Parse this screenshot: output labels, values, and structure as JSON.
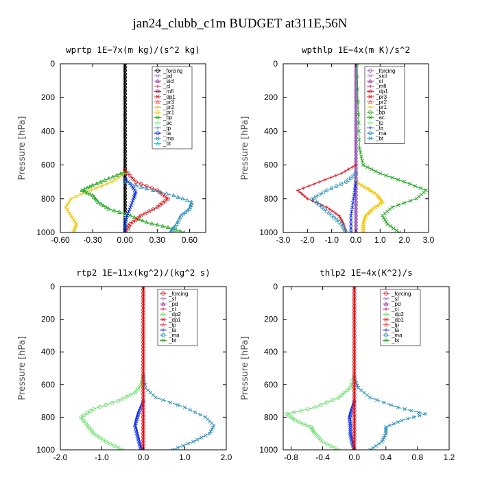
{
  "figure": {
    "title": "jan24_clubb_c1m  BUDGET at311E,56N"
  },
  "chart_data": [
    {
      "type": "line",
      "title": "wprtp   1E−7x(m kg)/(s^2 kg)",
      "ylabel": "Pressure [hPa]",
      "xlim": [
        -0.6,
        0.75
      ],
      "ylim": [
        1000,
        0
      ],
      "xticks": [
        -0.6,
        -0.3,
        0.0,
        0.3,
        0.6
      ],
      "xtick_labels": [
        "-0.60",
        "-0.30",
        "0.00",
        "0.30",
        "0.60"
      ],
      "yticks": [
        0,
        200,
        400,
        600,
        800,
        1000
      ],
      "ytick_labels": [
        "0",
        "200",
        "400",
        "600",
        "800",
        "1000"
      ],
      "legend_position": "top-right",
      "legend": [
        "_forcing",
        "_pd",
        "_sicl",
        "_cl",
        "_mfl",
        "_dp1",
        "_pr3",
        "_pr2",
        "_pr1",
        "_bp",
        "_ac",
        "_tp",
        "_ta",
        "_ma",
        "_bt"
      ],
      "series": [
        {
          "name": "_forcing",
          "color": "#000000",
          "p": [
            0,
            1000
          ],
          "v": [
            0.0,
            0.0
          ]
        },
        {
          "name": "_pr1",
          "color": "#f2c500",
          "p": [
            650,
            700,
            750,
            800,
            850,
            900,
            950,
            1000
          ],
          "v": [
            0.0,
            -0.12,
            -0.32,
            -0.5,
            -0.55,
            -0.5,
            -0.45,
            -0.48
          ]
        },
        {
          "name": "_bp",
          "color": "#22aa22",
          "p": [
            640,
            680,
            720,
            750,
            780,
            820,
            860,
            900,
            940,
            970,
            1000
          ],
          "v": [
            0.0,
            -0.15,
            -0.3,
            -0.4,
            -0.3,
            -0.25,
            -0.15,
            0.05,
            0.2,
            0.4,
            0.55
          ]
        },
        {
          "name": "_ac",
          "color": "#9ae89a",
          "p": [
            900,
            950,
            1000
          ],
          "v": [
            0.0,
            0.02,
            0.05
          ]
        },
        {
          "name": "_dp1",
          "color": "#e0151b",
          "p": [
            630,
            700,
            750,
            800,
            850,
            900,
            950,
            1000
          ],
          "v": [
            0.0,
            0.1,
            0.3,
            0.4,
            0.3,
            0.15,
            0.05,
            0.0
          ]
        },
        {
          "name": "_ta",
          "color": "#1030e0",
          "p": [
            680,
            720,
            760,
            800,
            850,
            900,
            950,
            1000
          ],
          "v": [
            0.0,
            0.06,
            0.1,
            0.08,
            0.05,
            0.02,
            0.0,
            0.0
          ]
        },
        {
          "name": "_ma",
          "color": "#2a8fb8",
          "p": [
            700,
            740,
            780,
            820,
            860,
            900,
            950,
            1000
          ],
          "v": [
            0.0,
            0.2,
            0.45,
            0.62,
            0.6,
            0.52,
            0.48,
            0.42
          ]
        }
      ]
    },
    {
      "type": "line",
      "title": "wpthlp   1E−4x(m K)/s^2",
      "ylabel": "Pressure [hPa]",
      "xlim": [
        -3.0,
        3.0
      ],
      "ylim": [
        1000,
        0
      ],
      "xticks": [
        -3,
        -2,
        -1,
        0,
        1,
        2,
        3
      ],
      "xtick_labels": [
        "-3.0",
        "-2.0",
        "-1.0",
        "0.0",
        "1.0",
        "2.0",
        "3.0"
      ],
      "yticks": [
        0,
        200,
        400,
        600,
        800,
        1000
      ],
      "ytick_labels": [
        "0",
        "200",
        "400",
        "600",
        "800",
        "1000"
      ],
      "legend_position": "top-right",
      "legend": [
        "_forcing",
        "_sicl",
        "_cl",
        "_mfl",
        "_dp1",
        "_pr3",
        "_pr2",
        "_pr1",
        "_bp",
        "_ac",
        "_tp",
        "_ta",
        "_ma",
        "_bt"
      ],
      "series": [
        {
          "name": "_forcing",
          "color": "#9b59b6",
          "p": [
            0,
            1000
          ],
          "v": [
            0.0,
            0.0
          ]
        },
        {
          "name": "_bp",
          "color": "#22aa22",
          "p": [
            0,
            300,
            500,
            600,
            650,
            700,
            750,
            800,
            850,
            900,
            950,
            1000
          ],
          "v": [
            0.05,
            0.1,
            0.15,
            0.3,
            1.0,
            2.0,
            2.9,
            2.5,
            1.5,
            1.1,
            1.3,
            1.8
          ]
        },
        {
          "name": "_pr1",
          "color": "#f2c500",
          "p": [
            700,
            740,
            780,
            820,
            860,
            900,
            950,
            1000
          ],
          "v": [
            0.0,
            0.5,
            0.9,
            1.1,
            0.7,
            0.4,
            0.3,
            0.3
          ]
        },
        {
          "name": "_dp1",
          "color": "#e0151b",
          "p": [
            600,
            650,
            700,
            750,
            800,
            850,
            900,
            950,
            1000
          ],
          "v": [
            0.0,
            -0.6,
            -1.5,
            -2.4,
            -2.0,
            -1.2,
            -0.7,
            -0.5,
            -0.4
          ]
        },
        {
          "name": "_ma",
          "color": "#2a8fb8",
          "p": [
            650,
            700,
            750,
            800,
            850,
            900,
            950,
            1000
          ],
          "v": [
            0.0,
            -0.4,
            -1.2,
            -1.8,
            -1.4,
            -1.0,
            -0.6,
            -0.4
          ]
        },
        {
          "name": "_ta",
          "color": "#1030e0",
          "p": [
            700,
            800,
            900,
            1000
          ],
          "v": [
            0.0,
            -0.1,
            -0.2,
            -0.2
          ]
        }
      ]
    },
    {
      "type": "line",
      "title": "rtp2   1E−11x(kg^2)/(kg^2 s)",
      "ylabel": "Pressure [hPa]",
      "xlim": [
        -2.0,
        2.0
      ],
      "ylim": [
        1000,
        0
      ],
      "xticks": [
        -2,
        -1,
        0,
        1,
        2
      ],
      "xtick_labels": [
        "-2.0",
        "-1.0",
        "0.0",
        "1.0",
        "2.0"
      ],
      "yticks": [
        0,
        200,
        400,
        600,
        800,
        1000
      ],
      "ytick_labels": [
        "0",
        "200",
        "400",
        "600",
        "800",
        "1000"
      ],
      "legend_position": "top-right",
      "legend": [
        "_forcing",
        "_sf",
        "_pd",
        "_cl",
        "_dp2",
        "_dp1",
        "_tp",
        "_ta",
        "_ma",
        "_bt"
      ],
      "series": [
        {
          "name": "_dp2",
          "color": "#6fe06f",
          "p": [
            550,
            600,
            650,
            700,
            750,
            800,
            850,
            900,
            950,
            1000
          ],
          "v": [
            0.0,
            -0.05,
            -0.2,
            -0.6,
            -1.2,
            -1.5,
            -1.35,
            -1.2,
            -0.9,
            -0.5
          ]
        },
        {
          "name": "_ma",
          "color": "#2a8fb8",
          "p": [
            550,
            620,
            680,
            740,
            800,
            850,
            900,
            950,
            1000
          ],
          "v": [
            0.0,
            0.05,
            0.3,
            1.0,
            1.5,
            1.7,
            1.6,
            1.2,
            0.7
          ]
        },
        {
          "name": "_ta",
          "color": "#1030e0",
          "p": [
            700,
            760,
            800,
            850,
            900,
            950,
            1000
          ],
          "v": [
            0.0,
            -0.1,
            -0.15,
            -0.2,
            -0.15,
            -0.1,
            -0.05
          ]
        },
        {
          "name": "_forcing",
          "color": "#e0151b",
          "p": [
            0,
            1000
          ],
          "v": [
            0.0,
            0.0
          ]
        }
      ]
    },
    {
      "type": "line",
      "title": "thlp2   1E−4x(K^2)/s",
      "ylabel": "Pressure [hPa]",
      "xlim": [
        -0.9,
        1.2
      ],
      "ylim": [
        1000,
        0
      ],
      "xticks": [
        -0.8,
        -0.4,
        0.0,
        0.4,
        0.8,
        1.2
      ],
      "xtick_labels": [
        "-0.8",
        "-0.4",
        "0.0",
        "0.4",
        "0.8",
        "1.2"
      ],
      "yticks": [
        0,
        200,
        400,
        600,
        800,
        1000
      ],
      "ytick_labels": [
        "0",
        "200",
        "400",
        "600",
        "800",
        "1000"
      ],
      "legend_position": "top-right",
      "legend": [
        "_forcing",
        "_sf",
        "_pd",
        "_cl",
        "_dp2",
        "_dp1",
        "_tp",
        "_ta",
        "_ma",
        "_bt"
      ],
      "series": [
        {
          "name": "_dp2",
          "color": "#6fe06f",
          "p": [
            550,
            620,
            680,
            740,
            780,
            820,
            860,
            900,
            950,
            1000
          ],
          "v": [
            0.0,
            -0.05,
            -0.2,
            -0.5,
            -0.85,
            -0.75,
            -0.55,
            -0.5,
            -0.4,
            -0.2
          ]
        },
        {
          "name": "_ma",
          "color": "#2a8fb8",
          "p": [
            560,
            620,
            680,
            740,
            780,
            820,
            860,
            900,
            950,
            1000
          ],
          "v": [
            0.0,
            0.05,
            0.2,
            0.55,
            0.9,
            0.6,
            0.4,
            0.4,
            0.35,
            0.2
          ]
        },
        {
          "name": "_ta",
          "color": "#1030e0",
          "p": [
            700,
            760,
            800,
            850,
            900,
            950,
            1000
          ],
          "v": [
            0.0,
            -0.04,
            -0.06,
            -0.05,
            -0.05,
            -0.03,
            0.0
          ]
        },
        {
          "name": "_forcing",
          "color": "#e0151b",
          "p": [
            0,
            1000
          ],
          "v": [
            0.0,
            0.0
          ]
        }
      ]
    }
  ]
}
